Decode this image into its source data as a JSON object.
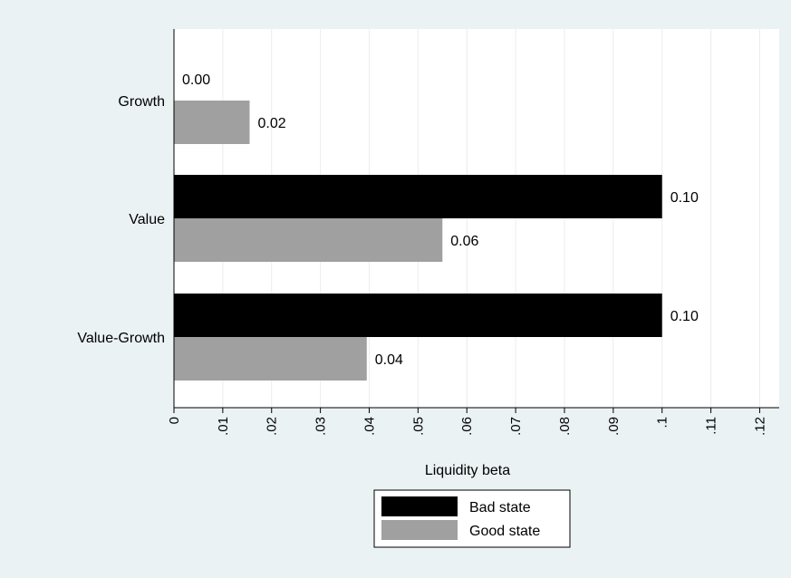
{
  "chart_data": {
    "type": "bar",
    "orientation": "horizontal",
    "categories": [
      "Growth",
      "Value",
      "Value-Growth"
    ],
    "series": [
      {
        "name": "Bad state",
        "values": [
          0.0,
          0.1,
          0.1
        ],
        "labels": [
          "0.00",
          "0.10",
          "0.10"
        ],
        "color": "#000000"
      },
      {
        "name": "Good state",
        "values": [
          0.0155,
          0.055,
          0.0395
        ],
        "labels": [
          "0.02",
          "0.06",
          "0.04"
        ],
        "color": "#a0a0a0"
      }
    ],
    "xlabel": "Liquidity beta",
    "ylabel": "",
    "xlim": [
      0,
      0.124
    ],
    "xticks": [
      0,
      0.01,
      0.02,
      0.03,
      0.04,
      0.05,
      0.06,
      0.07,
      0.08,
      0.09,
      0.1,
      0.11,
      0.12
    ],
    "xtick_labels": [
      "0",
      ".01",
      ".02",
      ".03",
      ".04",
      ".05",
      ".06",
      ".07",
      ".08",
      ".09",
      ".1",
      ".11",
      ".12"
    ],
    "grid": true,
    "legend_position": "bottom",
    "colors": {
      "background": "#eaf2f3",
      "plot_background": "#ffffff",
      "grid": "#e8eeee"
    }
  }
}
